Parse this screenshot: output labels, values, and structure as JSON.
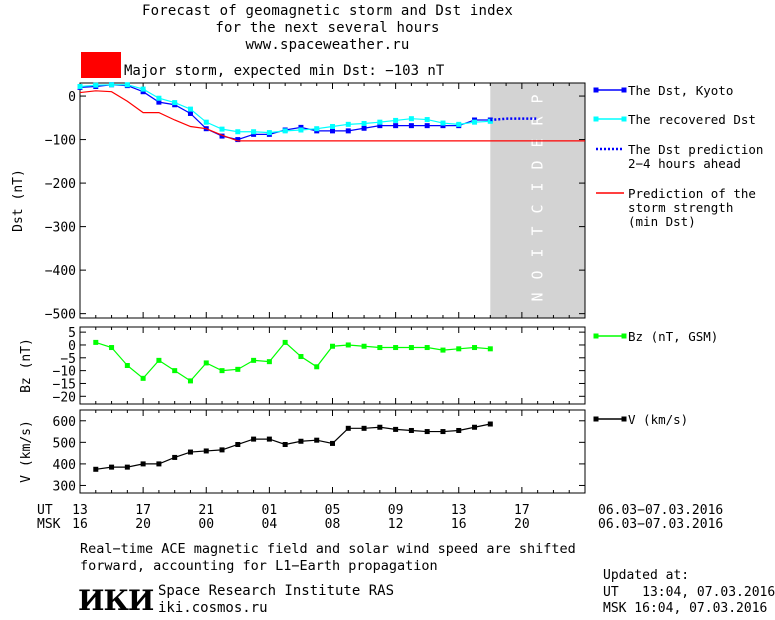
{
  "header": {
    "title_line1": "Forecast of geomagnetic storm and Dst index",
    "title_line2": "for the next several hours",
    "title_line3": "www.spaceweather.ru",
    "storm_label": "Major storm, expected min Dst: −103 nT",
    "storm_color": "#ff0000"
  },
  "chart_data": [
    {
      "type": "line",
      "panel": "Dst",
      "ylabel": "Dst (nT)",
      "ylim": [
        -510,
        30
      ],
      "yticks": [
        "0",
        "−100",
        "−200",
        "−300",
        "−400",
        "−500"
      ],
      "ytick_values": [
        0,
        -100,
        -200,
        -300,
        -400,
        -500
      ],
      "prediction_label": "PREDICTION",
      "prediction_band_color": "#d3d3d3",
      "series": [
        {
          "name": "The Dst, Kyoto",
          "color": "#0000ff",
          "x": [
            13.0,
            14.0,
            15.0,
            16.0,
            17.0,
            18.0,
            19.0,
            20.0,
            21.0,
            22.0,
            23.0,
            24.0,
            25.0,
            26.0,
            27.0,
            28.0,
            29.0,
            30.0,
            31.0,
            32.0,
            33.0,
            34.0,
            35.0,
            36.0,
            37.0,
            38.0,
            39.0
          ],
          "values": [
            20,
            22,
            26,
            24,
            10,
            -14,
            -20,
            -40,
            -75,
            -92,
            -100,
            -88,
            -88,
            -78,
            -72,
            -80,
            -80,
            -80,
            -74,
            -68,
            -68,
            -68,
            -68,
            -68,
            -68,
            -55,
            -55
          ]
        },
        {
          "name": "The recovered Dst",
          "color": "#00ffff",
          "x": [
            13.0,
            14.0,
            15.0,
            16.0,
            17.0,
            18.0,
            19.0,
            20.0,
            21.0,
            22.0,
            23.0,
            24.0,
            25.0,
            26.0,
            27.0,
            28.0,
            29.0,
            30.0,
            31.0,
            32.0,
            33.0,
            34.0,
            35.0,
            36.0,
            37.0,
            38.0,
            39.0
          ],
          "values": [
            22,
            25,
            26,
            26,
            16,
            -5,
            -15,
            -30,
            -60,
            -76,
            -82,
            -82,
            -84,
            -80,
            -78,
            -75,
            -70,
            -65,
            -63,
            -60,
            -56,
            -52,
            -54,
            -62,
            -65,
            -60,
            -58
          ]
        },
        {
          "name": "The Dst prediction 2−4 hours ahead",
          "color": "#0000ff",
          "style": "dotted",
          "x": [
            39.0,
            40.0,
            41.0,
            42.0
          ],
          "values": [
            -55,
            -52,
            -52,
            -52
          ]
        },
        {
          "name": "Prediction of the storm strength (min Dst)",
          "color": "#ff0000",
          "x": [
            13.0,
            14.0,
            15.0,
            16.0,
            17.0,
            18.0,
            19.0,
            20.0,
            21.0,
            22.0,
            23.0,
            24.0,
            25.0,
            26.0,
            27.0,
            28.0,
            29.0,
            30.0,
            31.0,
            32.0,
            33.0,
            34.0,
            35.0,
            36.0,
            37.0,
            38.0,
            39.0,
            40.0,
            41.0,
            42.0,
            43.0,
            44.0,
            45.0
          ],
          "values": [
            8,
            12,
            10,
            -12,
            -38,
            -38,
            -55,
            -70,
            -75,
            -90,
            -103,
            -103,
            -103,
            -103,
            -103,
            -103,
            -103,
            -103,
            -103,
            -103,
            -103,
            -103,
            -103,
            -103,
            -103,
            -103,
            -103,
            -103,
            -103,
            -103,
            -103,
            -103,
            -103
          ]
        }
      ],
      "legend": [
        "The Dst, Kyoto",
        "The recovered Dst",
        "The Dst prediction",
        "2−4 hours ahead",
        "Prediction of the",
        "storm strength",
        "(min Dst)"
      ]
    },
    {
      "type": "line",
      "panel": "Bz",
      "ylabel": "Bz (nT)",
      "ylim": [
        -23,
        7
      ],
      "yticks": [
        "5",
        "0",
        "−5",
        "−10",
        "−15",
        "−20"
      ],
      "ytick_values": [
        5,
        0,
        -5,
        -10,
        -15,
        -20
      ],
      "series": [
        {
          "name": "Bz (nT, GSM)",
          "color": "#00ff00",
          "x": [
            14.0,
            15.0,
            16.0,
            17.0,
            18.0,
            19.0,
            20.0,
            21.0,
            22.0,
            23.0,
            24.0,
            25.0,
            26.0,
            27.0,
            28.0,
            29.0,
            30.0,
            31.0,
            32.0,
            33.0,
            34.0,
            35.0,
            36.0,
            37.0,
            38.0,
            39.0
          ],
          "values": [
            1,
            -1,
            -8,
            -13,
            -6,
            -10,
            -14,
            -7,
            -10,
            -9.5,
            -6,
            -6.5,
            1,
            -4.5,
            -8.5,
            -0.5,
            0,
            -0.5,
            -1,
            -1,
            -1,
            -1,
            -2,
            -1.5,
            -1,
            -1.5
          ]
        }
      ],
      "legend": [
        "Bz (nT, GSM)"
      ]
    },
    {
      "type": "line",
      "panel": "V",
      "ylabel": "V (km/s)",
      "ylim": [
        265,
        650
      ],
      "yticks": [
        "600",
        "500",
        "400",
        "300"
      ],
      "ytick_values": [
        600,
        500,
        400,
        300
      ],
      "series": [
        {
          "name": "V (km/s)",
          "color": "#000000",
          "x": [
            14.0,
            15.0,
            16.0,
            17.0,
            18.0,
            19.0,
            20.0,
            21.0,
            22.0,
            23.0,
            24.0,
            25.0,
            26.0,
            27.0,
            28.0,
            29.0,
            30.0,
            31.0,
            32.0,
            33.0,
            34.0,
            35.0,
            36.0,
            37.0,
            38.0,
            39.0
          ],
          "values": [
            375,
            385,
            385,
            400,
            400,
            430,
            455,
            460,
            465,
            490,
            515,
            515,
            490,
            505,
            510,
            495,
            565,
            565,
            570,
            560,
            555,
            550,
            550,
            555,
            570,
            585
          ]
        }
      ],
      "legend": [
        "V (km/s)"
      ]
    }
  ],
  "time_axis": {
    "ut_label": "UT",
    "msk_label": "MSK",
    "tick_hours": [
      13,
      17,
      21,
      25,
      29,
      33,
      37,
      41
    ],
    "ut_ticks": [
      "13",
      "17",
      "21",
      "01",
      "05",
      "09",
      "13",
      "17"
    ],
    "msk_ticks": [
      "16",
      "20",
      "00",
      "04",
      "08",
      "12",
      "16",
      "20"
    ],
    "ut_range": "06.03−07.03.2016",
    "msk_range": "06.03−07.03.2016",
    "x_min": 13,
    "x_max": 45
  },
  "footer": {
    "note_line1": "Real−time ACE magnetic field and solar wind speed are shifted",
    "note_line2": "forward, accounting for L1−Earth propagation",
    "logo_text": "ИКИ",
    "institute": "Space Research Institute RAS",
    "site": "iki.cosmos.ru",
    "updated_label": "Updated at:",
    "updated_ut": "UT   13:04, 07.03.2016",
    "updated_msk": "MSK 16:04, 07.03.2016"
  }
}
